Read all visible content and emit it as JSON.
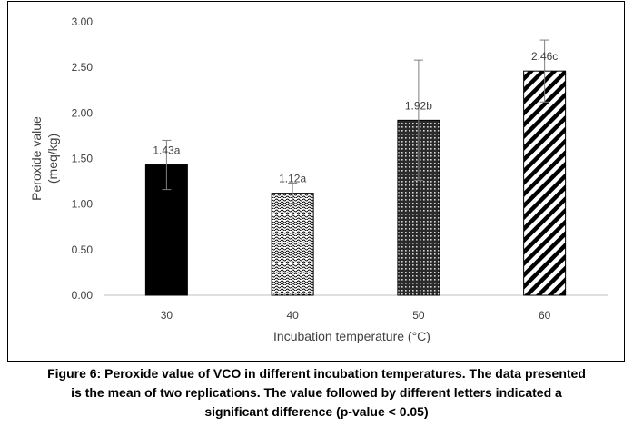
{
  "chart_data": {
    "type": "bar",
    "categories": [
      "30",
      "40",
      "50",
      "60"
    ],
    "values": [
      1.43,
      1.12,
      1.92,
      2.46
    ],
    "error": [
      0.27,
      0.11,
      0.66,
      0.34
    ],
    "labels": [
      "1.43a",
      "1.12a",
      "1.92b",
      "2.46c"
    ],
    "patterns": [
      "solid-black",
      "wave-dotted",
      "dense-grid",
      "diagonal-stripes"
    ],
    "ylabel_line1": "Peroxide value",
    "ylabel_line2": "(meq/kg)",
    "xlabel": "Incubation temperature (°C)",
    "ylim": [
      0,
      3
    ],
    "yticks": [
      "0.00",
      "0.50",
      "1.00",
      "1.50",
      "2.00",
      "2.50",
      "3.00"
    ],
    "grid": false,
    "legend": "none",
    "axis_color": "#bfbfbf",
    "text_color": "#404040"
  },
  "caption": {
    "line1": "Figure 6: Peroxide value of VCO in different incubation temperatures. The data presented",
    "line2": "is the mean of two replications. The value followed by different letters indicated a",
    "line3": "significant difference (p-value < 0.05)"
  }
}
